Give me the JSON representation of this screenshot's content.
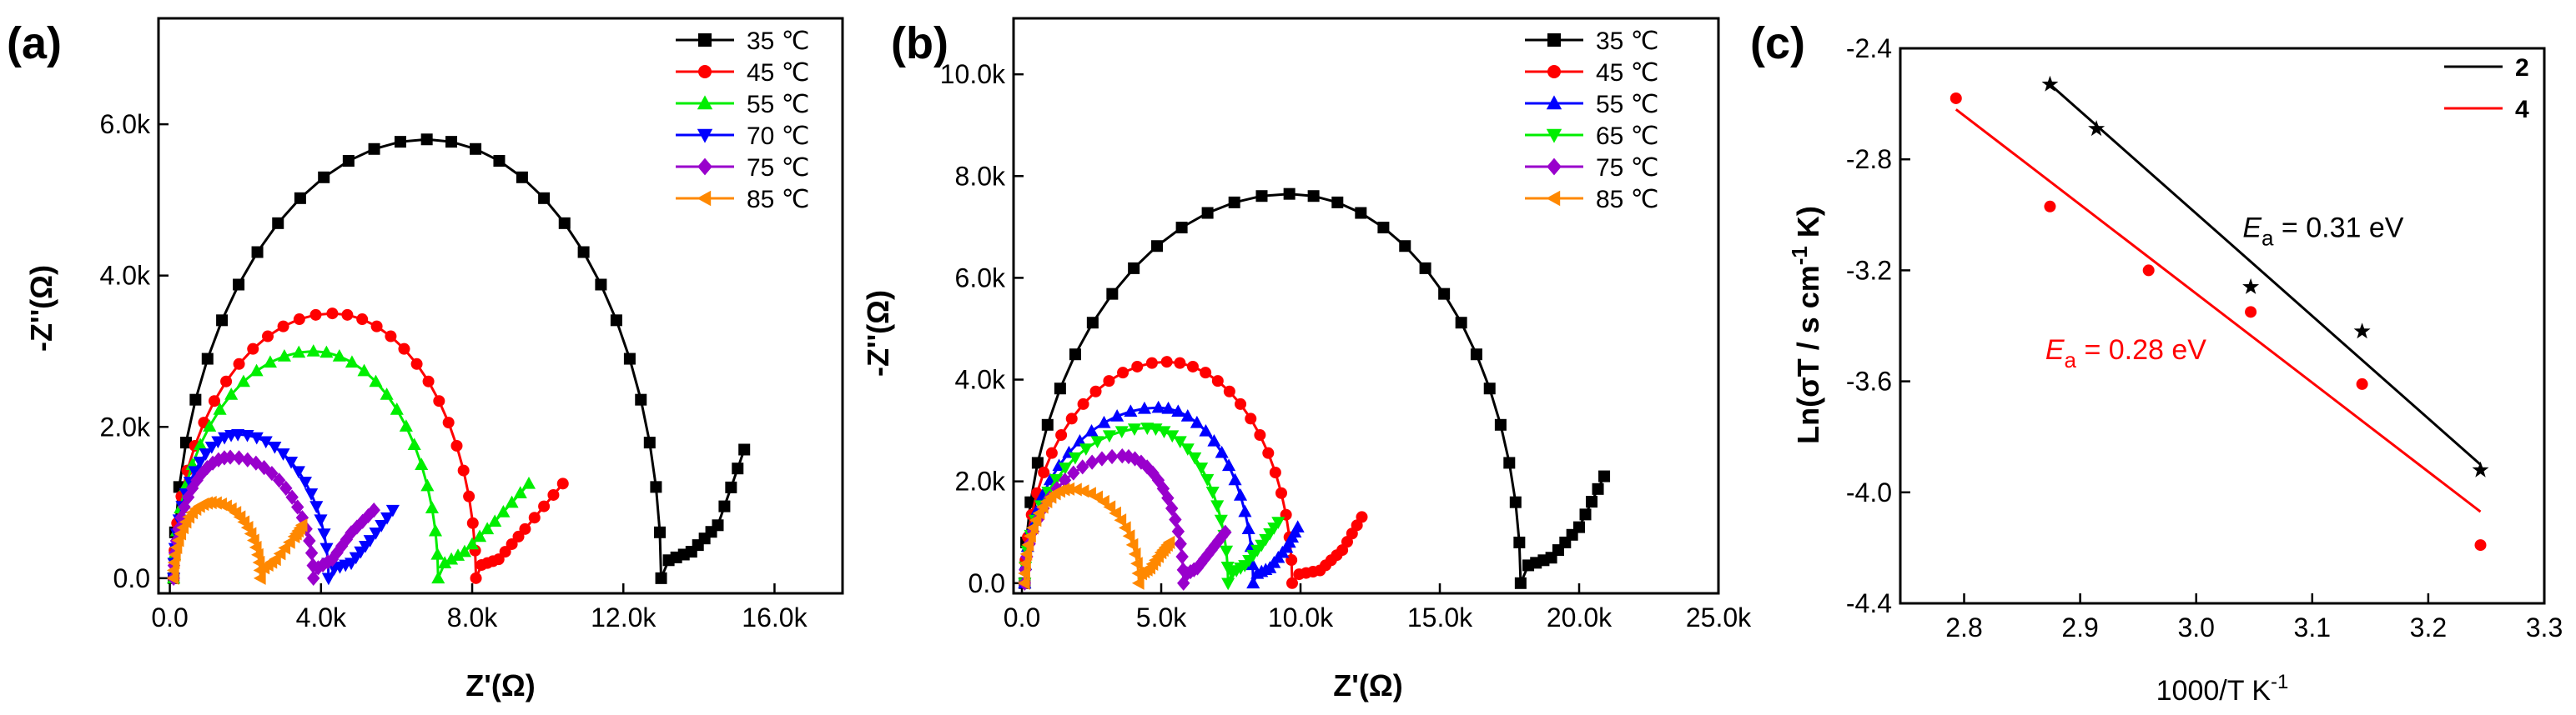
{
  "chart_data": [
    {
      "panel": "(a)",
      "type": "scatter",
      "xlabel": "Z'(Ω)",
      "ylabel": "-Z''(Ω)",
      "xlim": [
        -300,
        17800
      ],
      "ylim": [
        -200,
        7400
      ],
      "xticks": [
        {
          "v": 0,
          "t": "0.0"
        },
        {
          "v": 4000,
          "t": "4.0k"
        },
        {
          "v": 8000,
          "t": "8.0k"
        },
        {
          "v": 12000,
          "t": "12.0k"
        },
        {
          "v": 16000,
          "t": "16.0k"
        }
      ],
      "yticks": [
        {
          "v": 0,
          "t": "0.0"
        },
        {
          "v": 2000,
          "t": "2.0k"
        },
        {
          "v": 4000,
          "t": "4.0k"
        },
        {
          "v": 6000,
          "t": "6.0k"
        }
      ],
      "series": [
        {
          "name": "35 ℃",
          "color": "#000000",
          "marker": "square",
          "arc": [
            100,
            13000,
            5800,
            6800
          ],
          "tail": [
            [
              13000,
              200
            ],
            [
              13800,
              350
            ],
            [
              14500,
              700
            ],
            [
              15200,
              1700
            ]
          ]
        },
        {
          "name": "45 ℃",
          "color": "#ff0000",
          "marker": "circle",
          "arc": [
            100,
            8100,
            3500,
            4300
          ],
          "tail": [
            [
              8100,
              150
            ],
            [
              8700,
              250
            ],
            [
              9400,
              650
            ],
            [
              10400,
              1250
            ]
          ]
        },
        {
          "name": "55 ℃",
          "color": "#00ee00",
          "marker": "triangle-up",
          "arc": [
            100,
            7100,
            3000,
            3800
          ],
          "tail": [
            [
              7100,
              150
            ],
            [
              7800,
              350
            ],
            [
              8600,
              750
            ],
            [
              9500,
              1250
            ]
          ]
        },
        {
          "name": "70 ℃",
          "color": "#0000ff",
          "marker": "triangle-down",
          "arc": [
            100,
            4200,
            1900,
            1800
          ],
          "tail": [
            [
              4200,
              100
            ],
            [
              4800,
              200
            ],
            [
              5300,
              500
            ],
            [
              5900,
              900
            ]
          ]
        },
        {
          "name": "75 ℃",
          "color": "#9900cc",
          "marker": "diamond",
          "arc": [
            100,
            3800,
            1600,
            1600
          ],
          "tail": [
            [
              3800,
              100
            ],
            [
              4300,
              250
            ],
            [
              4800,
              600
            ],
            [
              5400,
              900
            ]
          ]
        },
        {
          "name": "85 ℃",
          "color": "#ff8800",
          "marker": "triangle-left",
          "arc": [
            100,
            2400,
            1000,
            1100
          ],
          "tail": [
            [
              2400,
              100
            ],
            [
              2800,
              250
            ],
            [
              3300,
              550
            ],
            [
              3500,
              700
            ]
          ]
        }
      ]
    },
    {
      "panel": "(b)",
      "type": "scatter",
      "xlabel": "Z'(Ω)",
      "ylabel": "-Z''(Ω)",
      "xlim": [
        -300,
        25000
      ],
      "ylim": [
        -200,
        11100
      ],
      "xticks": [
        {
          "v": 0,
          "t": "0.0"
        },
        {
          "v": 5000,
          "t": "5.0k"
        },
        {
          "v": 10000,
          "t": "10.0k"
        },
        {
          "v": 15000,
          "t": "15.0k"
        },
        {
          "v": 20000,
          "t": "20.0k"
        },
        {
          "v": 25000,
          "t": "25.0k"
        }
      ],
      "yticks": [
        {
          "v": 0,
          "t": "0.0"
        },
        {
          "v": 2000,
          "t": "2.0k"
        },
        {
          "v": 4000,
          "t": "4.0k"
        },
        {
          "v": 6000,
          "t": "6.0k"
        },
        {
          "v": 8000,
          "t": "8.0k"
        },
        {
          "v": 10000,
          "t": "10.0k"
        }
      ],
      "series": [
        {
          "name": "35 ℃",
          "color": "#000000",
          "marker": "square",
          "arc": [
            100,
            17900,
            7650,
            9600
          ],
          "tail": [
            [
              17900,
              300
            ],
            [
              19000,
              500
            ],
            [
              20000,
              1100
            ],
            [
              20900,
              2100
            ]
          ]
        },
        {
          "name": "45 ℃",
          "color": "#ff0000",
          "marker": "circle",
          "arc": [
            100,
            9700,
            4350,
            5200
          ],
          "tail": [
            [
              9700,
              150
            ],
            [
              10700,
              250
            ],
            [
              11500,
              650
            ],
            [
              12200,
              1300
            ]
          ]
        },
        {
          "name": "55 ℃",
          "color": "#0000ff",
          "marker": "triangle-up",
          "arc": [
            100,
            8300,
            3450,
            4900
          ],
          "tail": [
            [
              8300,
              150
            ],
            [
              8900,
              300
            ],
            [
              9500,
              700
            ],
            [
              9900,
              1100
            ]
          ]
        },
        {
          "name": "65 ℃",
          "color": "#00ee00",
          "marker": "triangle-down",
          "arc": [
            100,
            7400,
            3050,
            4500
          ],
          "tail": [
            [
              7400,
              150
            ],
            [
              8000,
              350
            ],
            [
              8600,
              750
            ],
            [
              9200,
              1200
            ]
          ]
        },
        {
          "name": "75 ℃",
          "color": "#9900cc",
          "marker": "diamond",
          "arc": [
            100,
            5800,
            2500,
            3600
          ],
          "tail": [
            [
              5800,
              150
            ],
            [
              6300,
              300
            ],
            [
              6800,
              650
            ],
            [
              7300,
              1000
            ]
          ]
        },
        {
          "name": "85 ℃",
          "color": "#ff8800",
          "marker": "triangle-left",
          "arc": [
            100,
            4200,
            1850,
            1700
          ],
          "tail": [
            [
              4200,
              150
            ],
            [
              4600,
              300
            ],
            [
              5000,
              600
            ],
            [
              5300,
              800
            ]
          ]
        }
      ]
    },
    {
      "panel": "(c)",
      "type": "scatter",
      "xlabel": "1000/T K",
      "xlabel_sup": "-1",
      "ylabel": "Ln(σT / s cm",
      "ylabel_sup": "-1",
      "ylabel_end": " K)",
      "xlim": [
        2.745,
        3.3
      ],
      "ylim": [
        -4.4,
        -2.4
      ],
      "xticks": [
        {
          "v": 2.8,
          "t": "2.8"
        },
        {
          "v": 2.9,
          "t": "2.9"
        },
        {
          "v": 3.0,
          "t": "3.0"
        },
        {
          "v": 3.1,
          "t": "3.1"
        },
        {
          "v": 3.2,
          "t": "3.2"
        },
        {
          "v": 3.3,
          "t": "3.3"
        }
      ],
      "yticks": [
        {
          "v": -2.4,
          "t": "-2.4"
        },
        {
          "v": -2.8,
          "t": "-2.8"
        },
        {
          "v": -3.2,
          "t": "-3.2"
        },
        {
          "v": -3.6,
          "t": "-3.6"
        },
        {
          "v": -4.0,
          "t": "-4.0"
        },
        {
          "v": -4.4,
          "t": "-4.4"
        }
      ],
      "series": [
        {
          "name": "2",
          "color": "#000000",
          "marker": "star",
          "points": [
            [
              2.874,
              -2.53
            ],
            [
              2.914,
              -2.69
            ],
            [
              3.047,
              -3.26
            ],
            [
              3.143,
              -3.42
            ],
            [
              3.245,
              -3.92
            ]
          ],
          "fit": [
            [
              2.874,
              -2.53
            ],
            [
              3.245,
              -3.9
            ]
          ],
          "annotation": {
            "E": "E",
            "sub": "a",
            "text": " = 0.31 eV",
            "x": 3.04,
            "y": -3.08
          }
        },
        {
          "name": "4",
          "color": "#ff0000",
          "marker": "circle",
          "points": [
            [
              2.793,
              -2.58
            ],
            [
              2.874,
              -2.97
            ],
            [
              2.959,
              -3.2
            ],
            [
              3.047,
              -3.35
            ],
            [
              3.143,
              -3.61
            ],
            [
              3.245,
              -4.19
            ]
          ],
          "fit": [
            [
              2.793,
              -2.62
            ],
            [
              3.245,
              -4.07
            ]
          ],
          "annotation": {
            "E": "E",
            "sub": "a",
            "text": " = 0.28 eV",
            "x": 2.87,
            "y": -3.52
          }
        }
      ]
    }
  ]
}
